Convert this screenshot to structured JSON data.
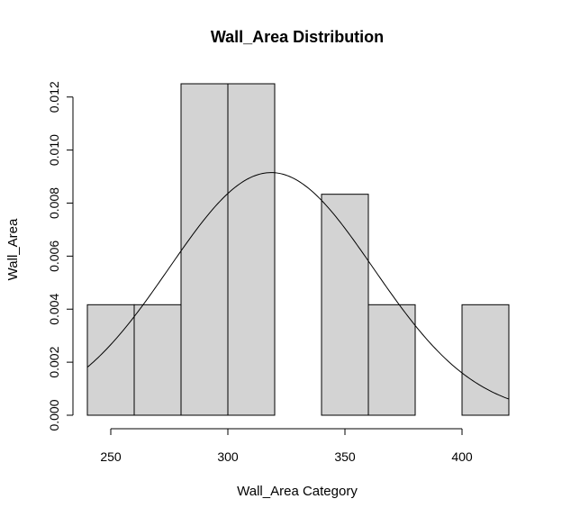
{
  "chart_data": {
    "type": "bar",
    "title": "Wall_Area Distribution",
    "xlabel": "Wall_Area Category",
    "ylabel": "Wall_Area",
    "bins": [
      {
        "x0": 240,
        "x1": 260,
        "density": 0.004167
      },
      {
        "x0": 260,
        "x1": 280,
        "density": 0.004167
      },
      {
        "x0": 280,
        "x1": 300,
        "density": 0.0125
      },
      {
        "x0": 300,
        "x1": 320,
        "density": 0.0125
      },
      {
        "x0": 320,
        "x1": 340,
        "density": 0.0
      },
      {
        "x0": 340,
        "x1": 360,
        "density": 0.008333
      },
      {
        "x0": 360,
        "x1": 380,
        "density": 0.004167
      },
      {
        "x0": 380,
        "x1": 400,
        "density": 0.0
      },
      {
        "x0": 400,
        "x1": 420,
        "density": 0.004167
      }
    ],
    "normal_curve": {
      "mean": 318.5,
      "sd": 43.6
    },
    "xlim": [
      240,
      420
    ],
    "ylim": [
      0,
      0.0125
    ],
    "x_ticks": [
      250,
      300,
      350,
      400
    ],
    "x_tick_labels": [
      "250",
      "300",
      "350",
      "400"
    ],
    "y_ticks": [
      0,
      0.002,
      0.004,
      0.006,
      0.008,
      0.01,
      0.012
    ],
    "y_tick_labels": [
      "0.000",
      "0.002",
      "0.004",
      "0.006",
      "0.008",
      "0.010",
      "0.012"
    ],
    "grid": false,
    "colors": {
      "bar_fill": "#d3d3d3",
      "stroke": "#000000"
    }
  }
}
